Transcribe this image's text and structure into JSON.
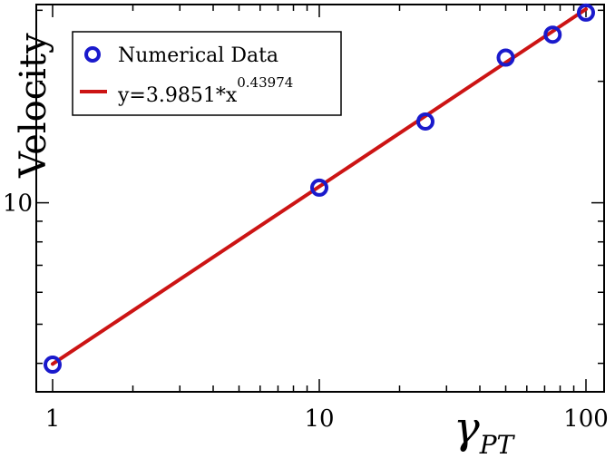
{
  "chart_data": {
    "type": "scatter",
    "xscale": "log",
    "yscale": "log",
    "xlim": [
      1,
      110
    ],
    "ylim": [
      3.4,
      31
    ],
    "xticks": [
      1,
      10,
      100
    ],
    "yticks": [
      10
    ],
    "xtick_labels": [
      "1",
      "10",
      "100"
    ],
    "ytick_labels": [
      "10"
    ],
    "ylabel": "Velocity",
    "xlabel": {
      "main": "γ",
      "sub": "PT"
    },
    "legend_position": "top-left",
    "series": [
      {
        "name": "Numerical Data",
        "kind": "markers",
        "marker": "open-circle",
        "color": "#1a1acc",
        "x": [
          1,
          10,
          25,
          50,
          75,
          100
        ],
        "y": [
          3.97,
          10.9,
          15.9,
          22.9,
          26.1,
          29.6
        ]
      },
      {
        "name": "y=3.9851*x",
        "name_sup": "0.43974",
        "kind": "line",
        "color": "#cc1414",
        "formula": {
          "a": 3.9851,
          "b": 0.43974
        },
        "x_range": [
          1,
          100
        ]
      }
    ]
  }
}
